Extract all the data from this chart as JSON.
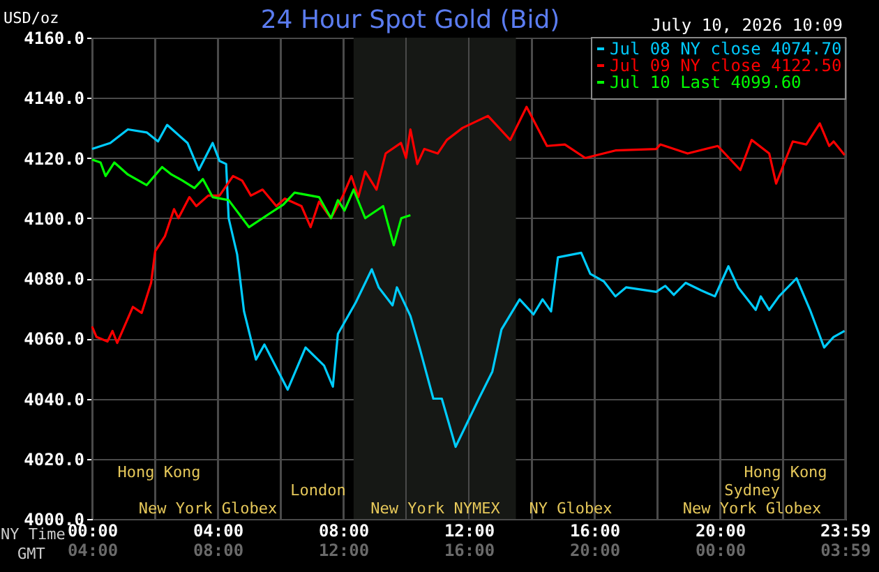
{
  "chart_data": {
    "type": "line",
    "title": "24 Hour Spot Gold (Bid)",
    "subtitle": "July 10, 2026 10:09",
    "ylabel": "USD/oz",
    "xlabel": "NY Time",
    "x2label": "GMT",
    "xlim": [
      0,
      24
    ],
    "xticks": [
      {
        "value": 0,
        "label": "00:00"
      },
      {
        "value": 2,
        "label": null
      },
      {
        "value": 4,
        "label": "04:00"
      },
      {
        "value": 6,
        "label": null
      },
      {
        "value": 8,
        "label": "08:00"
      },
      {
        "value": 10,
        "label": null
      },
      {
        "value": 12,
        "label": "12:00"
      },
      {
        "value": 14,
        "label": null
      },
      {
        "value": 16,
        "label": "16:00"
      },
      {
        "value": 18,
        "label": null
      },
      {
        "value": 20,
        "label": "20:00"
      },
      {
        "value": 22,
        "label": null
      },
      {
        "value": 23.9833,
        "label": "23:59"
      }
    ],
    "x2lim": [
      "2026-07-10T04:00",
      "2026-07-11T04:00"
    ],
    "x2ticks": [
      {
        "value": "2026-07-10T04:00",
        "label": "04:00"
      },
      {
        "value": "2026-07-10T08:00",
        "label": "08:00"
      },
      {
        "value": "2026-07-10T12:00",
        "label": "12:00"
      },
      {
        "value": "2026-07-10T16:00",
        "label": "16:00"
      },
      {
        "value": "2026-07-10T20:00",
        "label": "20:00"
      },
      {
        "value": "2026-07-11T00:00",
        "label": "00:00"
      },
      {
        "value": "2026-07-11T03:59",
        "label": "03:59"
      }
    ],
    "ylim": [
      4000,
      4160
    ],
    "yticks": [
      {
        "value": 4000,
        "label": "4000.0"
      },
      {
        "value": 4020,
        "label": "4020.0"
      },
      {
        "value": 4040,
        "label": "4040.0"
      },
      {
        "value": 4060,
        "label": "4060.0"
      },
      {
        "value": 4080,
        "label": "4080.0"
      },
      {
        "value": 4100,
        "label": "4100.0"
      },
      {
        "value": 4120,
        "label": "4120.0"
      },
      {
        "value": 4140,
        "label": "4140.0"
      },
      {
        "value": 4160,
        "label": "4160.0"
      }
    ],
    "grid": true,
    "legend": "top right",
    "marker": "none",
    "line_style": "solid",
    "bands": [
      {
        "axis": "x",
        "from": 8.33,
        "to": 13.5,
        "color": "#161815"
      }
    ],
    "annotations": [
      "Hong Kong",
      "London",
      "New York Globex",
      "New York NYMEX",
      "NY Globex",
      "Hong Kong",
      "Sydney",
      "New York Globex"
    ],
    "series": [
      {
        "name": "Jul 08 NY close 4074.70",
        "color": "#00ccff",
        "x": [
          0.0,
          0.58,
          1.14,
          1.74,
          2.1,
          2.39,
          3.04,
          3.4,
          3.84,
          4.06,
          4.27,
          4.35,
          4.62,
          4.84,
          5.22,
          5.49,
          6.23,
          6.8,
          7.39,
          7.67,
          7.83,
          8.4,
          8.91,
          9.13,
          9.57,
          9.71,
          10.14,
          10.43,
          10.87,
          11.14,
          11.58,
          12.32,
          12.75,
          13.04,
          13.62,
          14.06,
          14.35,
          14.62,
          14.84,
          15.58,
          15.87,
          16.3,
          16.67,
          17.01,
          17.97,
          18.26,
          18.53,
          18.91,
          19.4,
          19.84,
          20.27,
          20.58,
          21.14,
          21.3,
          21.57,
          21.88,
          22.44,
          22.87,
          23.32,
          23.62,
          23.97
        ],
        "values": [
          4123,
          4125,
          4129.5,
          4128.5,
          4125.5,
          4131,
          4125,
          4116,
          4125,
          4119,
          4118,
          4100,
          4088,
          4069,
          4053,
          4058,
          4043,
          4057,
          4051,
          4044,
          4061.5,
          4072,
          4083,
          4077,
          4071,
          4077,
          4067.5,
          4057,
          4040,
          4040,
          4024,
          4040,
          4049,
          4063,
          4073,
          4068,
          4073,
          4069,
          4087,
          4088.5,
          4081.5,
          4079,
          4074,
          4077,
          4075.5,
          4077.5,
          4074.5,
          4078.5,
          4076,
          4074,
          4084,
          4077,
          4069.5,
          4074,
          4069.5,
          4074,
          4080,
          4069.5,
          4057,
          4060.5,
          4062.5
        ]
      },
      {
        "name": "Jul 09 NY close 4122.50",
        "color": "#ff0000",
        "x": [
          0.0,
          0.14,
          0.49,
          0.65,
          0.8,
          1.3,
          1.58,
          1.88,
          2.01,
          2.32,
          2.61,
          2.75,
          3.1,
          3.32,
          3.7,
          4.06,
          4.49,
          4.78,
          5.06,
          5.43,
          5.87,
          6.14,
          6.67,
          6.96,
          7.23,
          7.61,
          7.97,
          8.26,
          8.48,
          8.7,
          9.06,
          9.35,
          9.84,
          10.0,
          10.14,
          10.36,
          10.58,
          11.01,
          11.3,
          11.8,
          12.61,
          13.32,
          13.84,
          14.49,
          15.06,
          15.71,
          16.67,
          17.97,
          18.1,
          18.97,
          19.93,
          20.65,
          21.01,
          21.57,
          21.79,
          22.32,
          22.75,
          23.18,
          23.48,
          23.62,
          23.97
        ],
        "values": [
          4064,
          4060.5,
          4059,
          4062.5,
          4058.5,
          4070.5,
          4068.5,
          4078.5,
          4089,
          4094,
          4103,
          4100,
          4107,
          4104,
          4107.5,
          4107.5,
          4114,
          4112.5,
          4107.5,
          4109.5,
          4104,
          4106.5,
          4104,
          4097,
          4105.5,
          4100,
          4107,
          4114,
          4107,
          4115.5,
          4109.5,
          4121.5,
          4125,
          4120,
          4129.5,
          4118,
          4123,
          4121.5,
          4126,
          4130,
          4134,
          4126,
          4137,
          4124,
          4124.5,
          4120,
          4122.5,
          4123,
          4124.5,
          4121.5,
          4124,
          4116,
          4126,
          4121.5,
          4111.5,
          4125.5,
          4124.5,
          4131.5,
          4124,
          4125.5,
          4121
        ]
      },
      {
        "name": "Jul 10 Last 4099.60",
        "color": "#00ff00",
        "x": [
          0.0,
          0.27,
          0.43,
          0.71,
          1.14,
          1.74,
          2.23,
          2.53,
          2.88,
          3.26,
          3.53,
          3.84,
          4.35,
          5.0,
          5.65,
          6.09,
          6.45,
          7.23,
          7.61,
          7.83,
          8.04,
          8.33,
          8.7,
          9.27,
          9.61,
          9.85,
          10.14
        ],
        "values": [
          4119.5,
          4118.5,
          4114,
          4118.5,
          4114.5,
          4111,
          4117,
          4114.5,
          4112.5,
          4110,
          4113,
          4107,
          4106,
          4097,
          4101.5,
          4104.5,
          4108.5,
          4107,
          4100,
          4106,
          4102.5,
          4109.5,
          4100,
          4104,
          4091,
          4100,
          4101
        ]
      }
    ]
  }
}
